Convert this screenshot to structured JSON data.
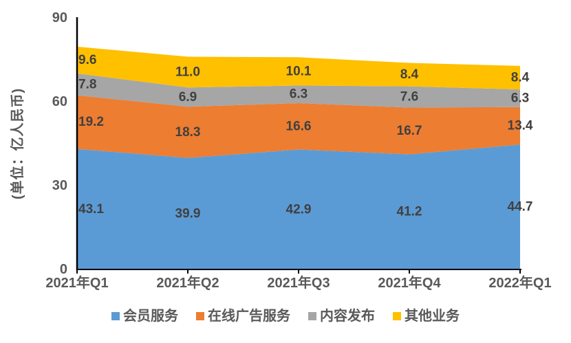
{
  "chart_data": {
    "type": "area",
    "stacked": true,
    "title": "",
    "categories": [
      "2021年Q1",
      "2021年Q2",
      "2021年Q3",
      "2021年Q4",
      "2022年Q1"
    ],
    "series": [
      {
        "key": "membership-services",
        "name": "会员服务",
        "color": "#5B9BD5",
        "values": [
          43.1,
          39.9,
          42.9,
          41.2,
          44.7
        ]
      },
      {
        "key": "online-ad-services",
        "name": "在线广告服务",
        "color": "#ED7D31",
        "values": [
          19.2,
          18.3,
          16.6,
          16.7,
          13.4
        ]
      },
      {
        "key": "content-distribution",
        "name": "内容发布",
        "color": "#A6A6A6",
        "values": [
          7.8,
          6.9,
          6.3,
          7.6,
          6.3
        ]
      },
      {
        "key": "other-business",
        "name": "其他业务",
        "color": "#FFC000",
        "values": [
          9.6,
          11.0,
          10.1,
          8.4,
          8.4
        ]
      }
    ],
    "xlabel": "",
    "ylabel": "(单位：亿人民币)",
    "yticks": [
      0,
      30,
      60,
      90
    ],
    "ylim": [
      0,
      90
    ],
    "grid": false,
    "legend_position": "bottom",
    "label_decimals": 1,
    "colors": {
      "data_label": "#404040",
      "axis_text": "#595959",
      "axis_line": "#000000",
      "background": "#FFFFFF"
    }
  }
}
